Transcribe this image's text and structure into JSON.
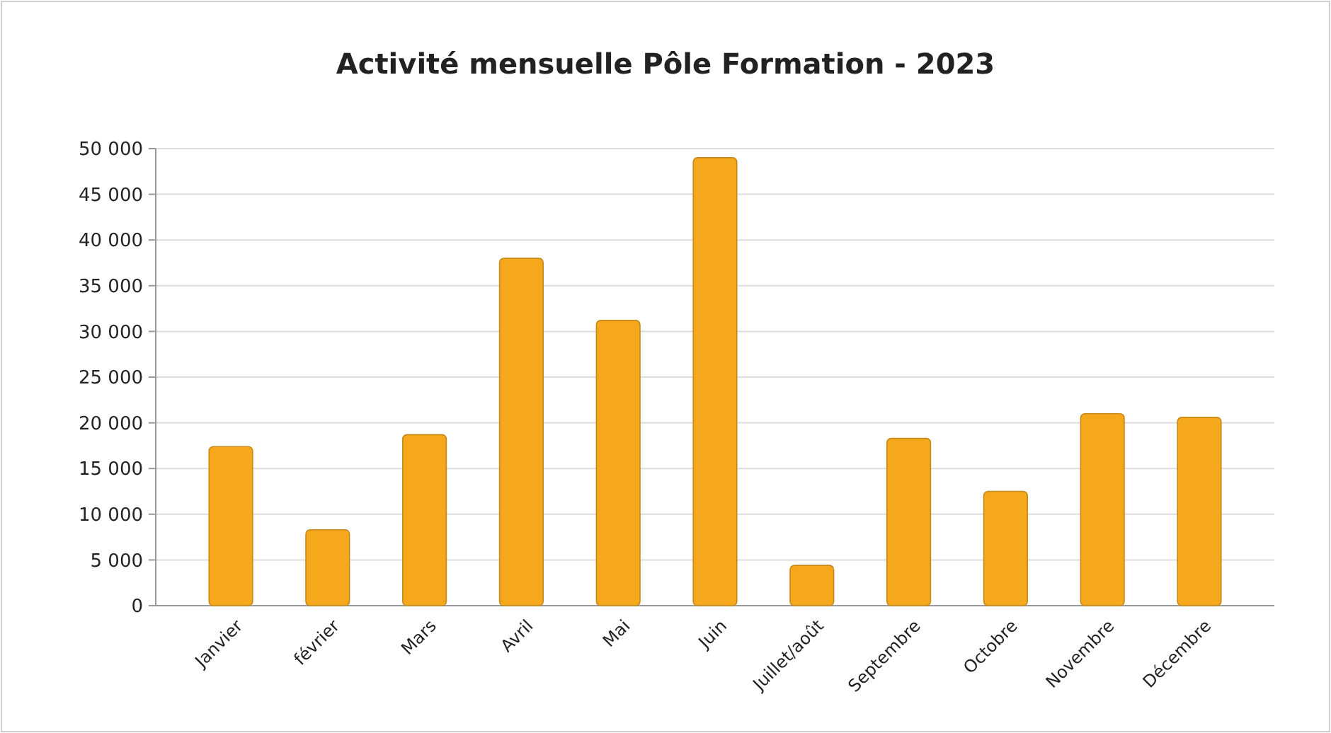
{
  "chart_data": {
    "type": "bar",
    "title": "Activité mensuelle Pôle Formation  - 2023",
    "categories": [
      "Janvier",
      "février",
      "Mars",
      "Avril",
      "Mai",
      "Juin",
      "Juillet/août",
      "Septembre",
      "Octobre",
      "Novembre",
      "Décembre"
    ],
    "values": [
      17400,
      8300,
      18700,
      38000,
      31200,
      49000,
      4400,
      18300,
      12500,
      21000,
      20600
    ],
    "color": "#f5a81c",
    "ylim": [
      0,
      50000
    ],
    "yticks": [
      {
        "value": 0,
        "label": "0"
      },
      {
        "value": 5000,
        "label": "5 000"
      },
      {
        "value": 10000,
        "label": "10 000"
      },
      {
        "value": 15000,
        "label": "15 000"
      },
      {
        "value": 20000,
        "label": "20 000"
      },
      {
        "value": 25000,
        "label": "25 000"
      },
      {
        "value": 30000,
        "label": "30 000"
      },
      {
        "value": 35000,
        "label": "35 000"
      },
      {
        "value": 40000,
        "label": "40 000"
      },
      {
        "value": 45000,
        "label": "45 000"
      },
      {
        "value": 50000,
        "label": "50 000"
      }
    ],
    "grid": "y"
  }
}
